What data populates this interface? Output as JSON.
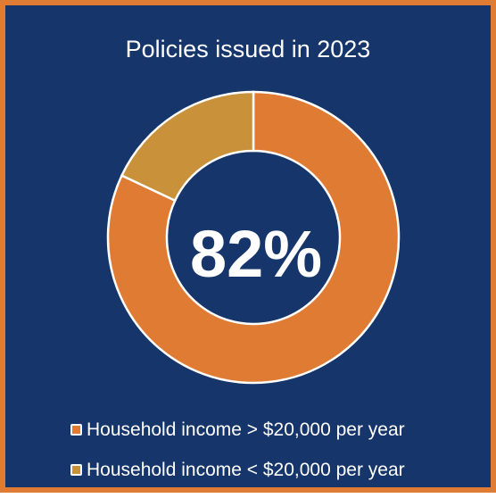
{
  "chart_data": {
    "type": "pie",
    "title": "Policies issued in 2023",
    "center_label": "82%",
    "categories": [
      "Household income > $20,000 per year",
      "Household income < $20,000 per year"
    ],
    "values": [
      82,
      18
    ],
    "colors": [
      "#e07b33",
      "#c8913a"
    ],
    "legend_position": "bottom"
  }
}
